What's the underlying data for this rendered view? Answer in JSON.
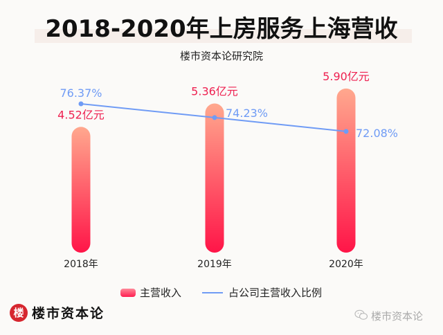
{
  "header": {
    "title": "2018-2020年上房服务上海营收",
    "subtitle": "楼市资本论研究院"
  },
  "chart_data": {
    "type": "bar",
    "title": "2018-2020年上房服务上海营收",
    "subtitle": "楼市资本论研究院",
    "categories": [
      "2018年",
      "2019年",
      "2020年"
    ],
    "series": [
      {
        "name": "主营收入",
        "type": "bar",
        "unit": "亿元",
        "values": [
          4.52,
          5.36,
          5.9
        ],
        "labels": [
          "4.52亿元",
          "5.36亿元",
          "5.90亿元"
        ],
        "color": "#ff1e50"
      },
      {
        "name": "占公司主营收入比例",
        "type": "line",
        "unit": "%",
        "values": [
          76.37,
          74.23,
          72.08
        ],
        "labels": [
          "76.37%",
          "74.23%",
          "72.08%"
        ],
        "color": "#6f9bf5"
      }
    ],
    "legend": "bottom-center",
    "grid": false
  },
  "legend": {
    "bar_label": "主营收入",
    "line_label": "占公司主营收入比例"
  },
  "footer": {
    "brand_logo": "楼",
    "brand_name": "楼市资本论",
    "watermark_icon": "wechat-icon",
    "watermark_text": "楼市资本论"
  },
  "colors": {
    "bar_top": "#ffa88e",
    "bar_bottom": "#ff1548",
    "bar_label": "#ee2050",
    "line": "#6f9bf5"
  }
}
